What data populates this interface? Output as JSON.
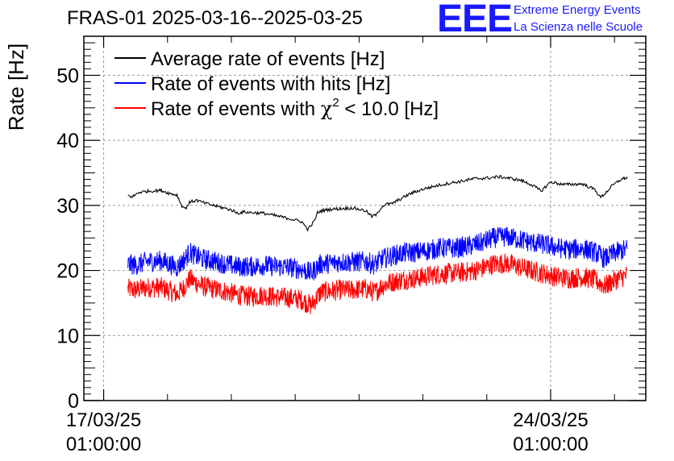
{
  "header": {
    "title": "FRAS-01 2025-03-16--2025-03-25",
    "logo_mark": "EEE",
    "logo_line1": "Extreme Energy Events",
    "logo_line2": "La Scienza nelle Scuole"
  },
  "colors": {
    "avg": "#000000",
    "hits": "#0000ff",
    "chi2": "#ff0000",
    "logo": "#1a1aff",
    "grid": "#9a9a9a"
  },
  "chart_data": {
    "type": "line",
    "title": "FRAS-01 2025-03-16--2025-03-25",
    "ylabel": "Rate [Hz]",
    "xlabel": "",
    "ylim": [
      0,
      56
    ],
    "xlim_days": [
      -0.31,
      8.49
    ],
    "yticks": [
      0,
      10,
      20,
      30,
      40,
      50
    ],
    "xticks": [
      {
        "day": 0,
        "line1": "17/03/25",
        "line2": "01:00:00"
      },
      {
        "day": 7,
        "line1": "24/03/25",
        "line2": "01:00:00"
      }
    ],
    "grid": true,
    "legend": {
      "position": "top-left",
      "entries": [
        {
          "series": "avg",
          "label": "Average rate of events [Hz]"
        },
        {
          "series": "hits",
          "label": "Rate of events with hits [Hz]"
        },
        {
          "series": "chi2",
          "label_prefix": "Rate of events with ",
          "label_symbol": "χ",
          "label_sup": "2",
          "label_suffix": " < 10.0 [Hz]"
        }
      ]
    },
    "noise": {
      "avg": 0.3,
      "hits": 1.6,
      "chi2": 1.6
    },
    "series": [
      {
        "name": "avg",
        "label": "Average rate of events [Hz]",
        "x": [
          0.38,
          0.45,
          0.55,
          0.7,
          0.9,
          1.05,
          1.15,
          1.22,
          1.28,
          1.35,
          1.45,
          1.6,
          1.8,
          2.0,
          2.1,
          2.2,
          2.3,
          2.5,
          2.7,
          2.9,
          3.1,
          3.2,
          3.3,
          3.35,
          3.42,
          3.55,
          3.7,
          3.9,
          4.1,
          4.2,
          4.28,
          4.35,
          4.42,
          4.5,
          4.65,
          4.8,
          5.0,
          5.2,
          5.4,
          5.6,
          5.8,
          6.0,
          6.2,
          6.4,
          6.55,
          6.62,
          6.7,
          6.85,
          7.0,
          7.2,
          7.5,
          7.7,
          7.78,
          7.85,
          7.95,
          8.1,
          8.2
        ],
        "values": [
          31.5,
          31.3,
          32.0,
          32.2,
          32.3,
          31.8,
          31.6,
          30.0,
          29.5,
          30.5,
          30.8,
          30.3,
          29.8,
          29.3,
          28.8,
          29.0,
          28.9,
          28.8,
          28.4,
          28.0,
          27.5,
          26.3,
          27.6,
          28.9,
          29.2,
          29.4,
          29.5,
          29.6,
          29.2,
          28.3,
          28.6,
          29.8,
          30.2,
          30.2,
          31.0,
          31.8,
          32.5,
          33.0,
          33.4,
          33.7,
          34.1,
          34.2,
          34.4,
          34.1,
          33.8,
          33.5,
          33.2,
          32.2,
          33.6,
          33.2,
          33.3,
          32.4,
          31.2,
          31.8,
          32.9,
          34.0,
          34.3
        ]
      },
      {
        "name": "hits",
        "label": "Rate of events with hits [Hz]",
        "x": [
          0.38,
          0.5,
          0.7,
          0.9,
          1.05,
          1.15,
          1.25,
          1.35,
          1.45,
          1.55,
          1.7,
          1.9,
          2.1,
          2.3,
          2.5,
          2.7,
          2.9,
          3.1,
          3.25,
          3.4,
          3.55,
          3.7,
          3.9,
          4.1,
          4.25,
          4.35,
          4.5,
          4.7,
          4.9,
          5.1,
          5.3,
          5.5,
          5.7,
          5.9,
          6.1,
          6.3,
          6.5,
          6.7,
          6.9,
          7.1,
          7.3,
          7.5,
          7.7,
          7.85,
          8.0,
          8.2
        ],
        "values": [
          21.0,
          20.8,
          21.4,
          21.5,
          20.9,
          20.5,
          21.5,
          22.8,
          22.2,
          21.8,
          21.5,
          21.0,
          20.6,
          20.6,
          20.8,
          20.6,
          20.5,
          20.2,
          19.6,
          21.0,
          21.1,
          21.3,
          21.3,
          21.4,
          20.9,
          21.7,
          22.2,
          22.7,
          22.8,
          23.1,
          23.5,
          23.4,
          23.7,
          24.2,
          25.0,
          25.2,
          24.8,
          24.3,
          24.0,
          23.5,
          23.2,
          23.4,
          22.8,
          21.8,
          22.7,
          23.3
        ]
      },
      {
        "name": "chi2",
        "label": "Rate of events with χ2 < 10.0 [Hz]",
        "x": [
          0.38,
          0.5,
          0.7,
          0.9,
          1.05,
          1.15,
          1.25,
          1.35,
          1.45,
          1.55,
          1.7,
          1.9,
          2.1,
          2.3,
          2.5,
          2.7,
          2.9,
          3.1,
          3.25,
          3.4,
          3.55,
          3.7,
          3.9,
          4.1,
          4.25,
          4.35,
          4.5,
          4.7,
          4.9,
          5.1,
          5.3,
          5.5,
          5.7,
          5.9,
          6.1,
          6.3,
          6.5,
          6.7,
          6.9,
          7.1,
          7.3,
          7.5,
          7.7,
          7.85,
          8.0,
          8.2
        ],
        "values": [
          17.2,
          17.0,
          17.4,
          17.4,
          16.8,
          16.3,
          17.3,
          18.7,
          18.1,
          17.6,
          17.2,
          16.8,
          16.2,
          16.0,
          16.2,
          15.9,
          15.8,
          15.5,
          14.6,
          16.7,
          16.8,
          17.0,
          17.0,
          17.2,
          16.6,
          17.6,
          18.2,
          18.6,
          18.8,
          19.2,
          19.5,
          19.6,
          19.8,
          20.2,
          21.0,
          21.1,
          20.6,
          20.0,
          19.5,
          19.0,
          18.8,
          19.0,
          18.5,
          17.6,
          18.5,
          19.3
        ]
      }
    ]
  }
}
